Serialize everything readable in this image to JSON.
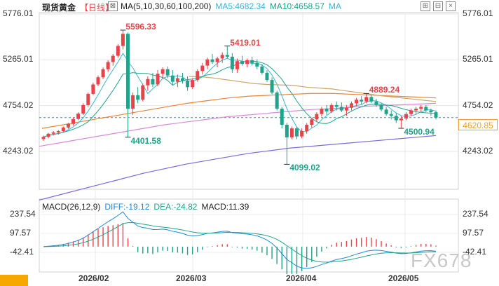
{
  "header": {
    "title": "现货黄金",
    "period": "【日线】",
    "ma_label": "MA(5,10,30,60,100,200)",
    "ma5": "MA5:4682.34",
    "ma10": "MA10:4658.57",
    "ma_more": "MA"
  },
  "macd_header": {
    "label": "MACD(26,12,9)",
    "diff": "DIFF:-19.12",
    "dea": "DEA:-24.82",
    "macd": "MACD:11.39"
  },
  "current_price": "4620.85",
  "watermark": "FX678",
  "colors": {
    "up": "#e8434a",
    "down": "#1fa38a",
    "ma5": "#3ab5d6",
    "ma10": "#1fa38a",
    "ma30": "#c9a86a",
    "ma60": "#e9853a",
    "ma100": "#d98ad9",
    "ma200": "#7c6ad9",
    "dea": "#1d88d9",
    "diff": "#1fa38a"
  },
  "chart_data": {
    "type": "candlestick",
    "y_ticks": [
      "5776.01",
      "5265.01",
      "4754.02",
      "4243.02"
    ],
    "y_tick_values": [
      5776.01,
      5265.01,
      4754.02,
      4243.02
    ],
    "x_ticks": [
      "2026/02",
      "2026/03",
      "2026/04",
      "2026/05"
    ],
    "macd_y_ticks": [
      "237.54",
      "97.57",
      "-42.41"
    ],
    "macd_y_tick_values": [
      237.54,
      97.57,
      -42.41
    ],
    "annotations": [
      {
        "label": "5596.33",
        "kind": "high"
      },
      {
        "label": "4401.58",
        "kind": "low"
      },
      {
        "label": "5419.01",
        "kind": "high"
      },
      {
        "label": "4099.02",
        "kind": "low"
      },
      {
        "label": "4889.24",
        "kind": "high"
      },
      {
        "label": "4500.94",
        "kind": "low"
      }
    ],
    "last_price": 4620.85,
    "candles_ohlc": [
      [
        4380,
        4420,
        4360,
        4405
      ],
      [
        4405,
        4450,
        4390,
        4440
      ],
      [
        4440,
        4470,
        4420,
        4455
      ],
      [
        4455,
        4480,
        4430,
        4470
      ],
      [
        4470,
        4520,
        4460,
        4510
      ],
      [
        4510,
        4560,
        4495,
        4550
      ],
      [
        4550,
        4620,
        4530,
        4605
      ],
      [
        4605,
        4680,
        4590,
        4665
      ],
      [
        4665,
        4780,
        4650,
        4760
      ],
      [
        4760,
        4900,
        4740,
        4885
      ],
      [
        4885,
        5010,
        4870,
        4990
      ],
      [
        4990,
        5090,
        4970,
        5070
      ],
      [
        5070,
        5180,
        5050,
        5160
      ],
      [
        5160,
        5260,
        5130,
        5240
      ],
      [
        5240,
        5330,
        5200,
        5310
      ],
      [
        5310,
        5440,
        5290,
        5420
      ],
      [
        5420,
        5596.33,
        5380,
        5555
      ],
      [
        5555,
        5570,
        4401.58,
        4720
      ],
      [
        4720,
        4900,
        4650,
        4870
      ],
      [
        4870,
        4960,
        4780,
        4820
      ],
      [
        4820,
        5000,
        4800,
        4980
      ],
      [
        4980,
        5080,
        4920,
        5050
      ],
      [
        5050,
        5120,
        4960,
        4990
      ],
      [
        4990,
        5150,
        4970,
        5110
      ],
      [
        5110,
        5180,
        5050,
        5160
      ],
      [
        5160,
        5190,
        5060,
        5090
      ],
      [
        5090,
        5150,
        4980,
        5020
      ],
      [
        5020,
        5100,
        4960,
        5060
      ],
      [
        5060,
        5120,
        5000,
        5030
      ],
      [
        5030,
        5080,
        4920,
        4960
      ],
      [
        4960,
        5060,
        4940,
        5040
      ],
      [
        5040,
        5160,
        5020,
        5140
      ],
      [
        5140,
        5230,
        5100,
        5200
      ],
      [
        5200,
        5290,
        5160,
        5270
      ],
      [
        5270,
        5330,
        5220,
        5240
      ],
      [
        5240,
        5300,
        5180,
        5280
      ],
      [
        5280,
        5350,
        5230,
        5320
      ],
      [
        5320,
        5419.01,
        5280,
        5300
      ],
      [
        5300,
        5340,
        5120,
        5160
      ],
      [
        5160,
        5280,
        5120,
        5250
      ],
      [
        5250,
        5310,
        5200,
        5220
      ],
      [
        5220,
        5280,
        5180,
        5260
      ],
      [
        5260,
        5300,
        5200,
        5230
      ],
      [
        5230,
        5270,
        5160,
        5190
      ],
      [
        5190,
        5220,
        5100,
        5120
      ],
      [
        5120,
        5150,
        5020,
        5040
      ],
      [
        5040,
        5070,
        4880,
        4900
      ],
      [
        4900,
        4920,
        4700,
        4720
      ],
      [
        4720,
        4740,
        4500,
        4540
      ],
      [
        4540,
        4560,
        4099.02,
        4400
      ],
      [
        4400,
        4520,
        4380,
        4500
      ],
      [
        4500,
        4520,
        4380,
        4410
      ],
      [
        4410,
        4500,
        4390,
        4470
      ],
      [
        4470,
        4560,
        4440,
        4540
      ],
      [
        4540,
        4620,
        4510,
        4600
      ],
      [
        4600,
        4680,
        4570,
        4660
      ],
      [
        4660,
        4740,
        4630,
        4720
      ],
      [
        4720,
        4760,
        4650,
        4690
      ],
      [
        4690,
        4780,
        4670,
        4760
      ],
      [
        4760,
        4800,
        4700,
        4740
      ],
      [
        4740,
        4790,
        4680,
        4700
      ],
      [
        4700,
        4760,
        4640,
        4730
      ],
      [
        4730,
        4800,
        4700,
        4780
      ],
      [
        4780,
        4840,
        4750,
        4820
      ],
      [
        4820,
        4860,
        4770,
        4800
      ],
      [
        4800,
        4889.24,
        4780,
        4850
      ],
      [
        4850,
        4870,
        4780,
        4800
      ],
      [
        4800,
        4830,
        4740,
        4760
      ],
      [
        4760,
        4780,
        4690,
        4710
      ],
      [
        4710,
        4740,
        4640,
        4660
      ],
      [
        4660,
        4700,
        4600,
        4640
      ],
      [
        4640,
        4670,
        4560,
        4590
      ],
      [
        4590,
        4640,
        4500.94,
        4610
      ],
      [
        4610,
        4680,
        4590,
        4660
      ],
      [
        4660,
        4720,
        4640,
        4700
      ],
      [
        4700,
        4740,
        4660,
        4720
      ],
      [
        4720,
        4760,
        4690,
        4740
      ],
      [
        4740,
        4760,
        4680,
        4700
      ],
      [
        4700,
        4720,
        4640,
        4680
      ],
      [
        4680,
        4700,
        4600,
        4620.85
      ]
    ],
    "ma30": [
      5080,
      5075,
      5060,
      5040,
      5020,
      5000,
      4990,
      4985,
      4980,
      4960,
      4950,
      4940,
      4920,
      4900,
      4880,
      4860,
      4845,
      4830,
      4815,
      4800
    ],
    "ma60": [
      4500,
      4540,
      4580,
      4620,
      4660,
      4700,
      4740,
      4780,
      4810,
      4840,
      4860,
      4870,
      4880,
      4890,
      4890,
      4880,
      4870,
      4860,
      4850,
      4840
    ],
    "ma100": [
      4300,
      4340,
      4380,
      4420,
      4460,
      4500,
      4540,
      4570,
      4600,
      4630,
      4650,
      4670,
      4690,
      4710,
      4720,
      4740,
      4750,
      4760,
      4770,
      4780
    ],
    "ma200": [
      3700,
      3760,
      3820,
      3880,
      3940,
      4000,
      4050,
      4100,
      4140,
      4180,
      4220,
      4250,
      4280,
      4300,
      4320,
      4340,
      4360,
      4380,
      4400,
      4420
    ]
  }
}
